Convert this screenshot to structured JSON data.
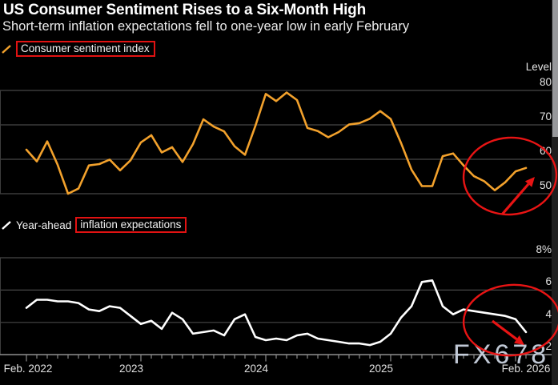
{
  "header": {
    "title": "US Consumer Sentiment Rises to a Six-Month High",
    "subtitle": "Short-term inflation expectations fell to one-year low in early February"
  },
  "legends": {
    "sentiment": "Consumer sentiment index",
    "inflation_prefix": "Year-ahead",
    "inflation_highlight": "inflation expectations"
  },
  "watermark": "FX678",
  "colors": {
    "background": "#000000",
    "sentiment_line": "#F2A12C",
    "inflation_line": "#FFFFFF",
    "annotation_red": "#E81414",
    "gridline": "#474747",
    "axis": "#8A8A8A",
    "label": "#E3E3E3"
  },
  "x_axis": {
    "labels": [
      "Feb. 2022",
      "2023",
      "2024",
      "2025",
      "Feb. 2026"
    ]
  },
  "chart_data": [
    {
      "type": "line",
      "name": "Consumer sentiment index",
      "ylabel": "Level",
      "frequency": "monthly",
      "x_start": "Feb 2022",
      "x_end": "Feb 2026",
      "yticks": [
        80,
        70,
        60,
        50
      ],
      "ytick_labels": [
        "80",
        "70",
        "60",
        "50"
      ],
      "ylim": [
        47,
        83
      ],
      "legend_position": "top-left",
      "grid": true,
      "values": [
        62.8,
        59.4,
        65.2,
        58.4,
        50.0,
        51.5,
        58.2,
        58.6,
        59.9,
        56.8,
        59.7,
        64.9,
        67.0,
        62.0,
        63.5,
        59.2,
        64.4,
        71.6,
        69.5,
        68.1,
        63.8,
        61.3,
        69.7,
        79.0,
        76.9,
        79.4,
        77.2,
        69.1,
        68.2,
        66.4,
        67.9,
        70.1,
        70.5,
        71.8,
        74.0,
        71.7,
        64.7,
        57.0,
        52.2,
        52.2,
        60.9,
        61.7,
        58.2,
        55.1,
        53.6,
        51.0,
        53.3,
        56.5,
        57.5
      ]
    },
    {
      "type": "line",
      "name": "Year-ahead inflation expectations",
      "ylabel": "%",
      "frequency": "monthly",
      "x_start": "Feb 2022",
      "x_end": "Feb 2026",
      "yticks": [
        8,
        6,
        4,
        2
      ],
      "ytick_labels": [
        "8%",
        "6",
        "4",
        "2"
      ],
      "ylim": [
        1.8,
        8.2
      ],
      "legend_position": "top-left",
      "grid": true,
      "values": [
        4.9,
        5.4,
        5.4,
        5.3,
        5.3,
        5.2,
        4.8,
        4.7,
        5.0,
        4.9,
        4.4,
        3.9,
        4.1,
        3.6,
        4.6,
        4.2,
        3.3,
        3.4,
        3.5,
        3.2,
        4.2,
        4.5,
        3.1,
        2.9,
        3.0,
        2.9,
        3.2,
        3.3,
        3.0,
        2.9,
        2.8,
        2.7,
        2.7,
        2.6,
        2.8,
        3.3,
        4.3,
        5.0,
        6.5,
        6.6,
        5.0,
        4.5,
        4.8,
        4.7,
        4.6,
        4.5,
        4.4,
        4.2,
        3.4
      ]
    }
  ],
  "annotations": [
    {
      "shape": "ellipse",
      "chart": "sentiment",
      "note": "recent rebound circled"
    },
    {
      "shape": "arrow",
      "chart": "sentiment",
      "direction": "up-right"
    },
    {
      "shape": "ellipse",
      "chart": "inflation",
      "note": "recent decline circled"
    },
    {
      "shape": "arrow",
      "chart": "inflation",
      "direction": "down-right"
    },
    {
      "shape": "box",
      "target": "Consumer sentiment index"
    },
    {
      "shape": "box",
      "target": "inflation expectations"
    }
  ]
}
